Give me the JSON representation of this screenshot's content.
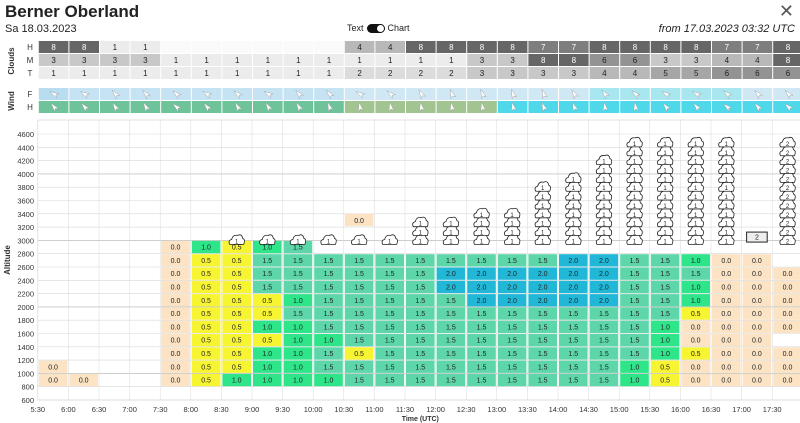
{
  "header": {
    "title": "Berner Oberland",
    "date": "Sa 18.03.2023",
    "toggle_text": "Text",
    "toggle_chart": "Chart",
    "from": "from 17.03.2023 03:32 UTC",
    "close": "✕"
  },
  "clouds": {
    "label": "Clouds",
    "rows": [
      {
        "label": "H",
        "values": [
          "8",
          "8",
          "1",
          "1",
          "",
          "",
          "",
          "",
          "",
          "",
          "4",
          "4",
          "8",
          "8",
          "8",
          "8",
          "7",
          "7",
          "8",
          "8",
          "8",
          "8",
          "7",
          "7",
          "8"
        ]
      },
      {
        "label": "M",
        "values": [
          "3",
          "3",
          "3",
          "3",
          "1",
          "1",
          "1",
          "1",
          "1",
          "1",
          "1",
          "1",
          "1",
          "1",
          "3",
          "3",
          "8",
          "8",
          "6",
          "6",
          "3",
          "3",
          "4",
          "4",
          "8"
        ]
      },
      {
        "label": "T",
        "values": [
          "1",
          "1",
          "1",
          "1",
          "1",
          "1",
          "1",
          "1",
          "1",
          "1",
          "2",
          "2",
          "2",
          "2",
          "3",
          "3",
          "3",
          "3",
          "4",
          "4",
          "5",
          "5",
          "6",
          "6",
          "6"
        ]
      }
    ]
  },
  "wind": {
    "label": "Wind",
    "rows": [
      {
        "label": "F"
      },
      {
        "label": "H"
      }
    ],
    "f_dirs": [
      -60,
      -60,
      -40,
      -40,
      -50,
      -60,
      -50,
      -60,
      -40,
      -40,
      -60,
      -50,
      -30,
      -20,
      -20,
      -20,
      -20,
      -30,
      -40,
      -50,
      -60,
      -60,
      -50,
      -40,
      -40
    ],
    "h_dirs": [
      -40,
      -40,
      -30,
      -30,
      -50,
      -40,
      -30,
      -30,
      -30,
      -20,
      -10,
      -10,
      -10,
      -10,
      -10,
      -10,
      -20,
      -20,
      -10,
      -10,
      -40,
      -40,
      -50,
      -40,
      -50
    ],
    "f_colors": [
      "#b8dcf0",
      "#c5e3f3",
      "#c5e3f3",
      "#c5e3f3",
      "#c5e3f3",
      "#c5e3f3",
      "#c5e3f3",
      "#c5e3f3",
      "#c5e3f3",
      "#c5e3f3",
      "#d0e8f4",
      "#d0e8f4",
      "#d0e8f4",
      "#d0e8f4",
      "#d0e8f4",
      "#d0e8f4",
      "#d0e8f4",
      "#d0e8f4",
      "#a8e6f0",
      "#a8e6f0",
      "#a8e6f0",
      "#a8e6f0",
      "#a8e6f0",
      "#d0e8f4",
      "#d0e8f4"
    ],
    "h_colors": [
      "#6fc39a",
      "#6fc39a",
      "#6fc39a",
      "#6fc39a",
      "#6fc39a",
      "#6fc39a",
      "#6fc39a",
      "#6fc39a",
      "#6fc39a",
      "#6fc39a",
      "#a2c490",
      "#a2c490",
      "#a2c490",
      "#a2c490",
      "#a2c490",
      "#4fd8ea",
      "#4fd8ea",
      "#4fd8ea",
      "#4fd8ea",
      "#4fd8ea",
      "#4fd8ea",
      "#4fd8ea",
      "#4fd8ea",
      "#4fd8ea",
      "#4fd8ea"
    ]
  },
  "chart_data": {
    "type": "heatmap",
    "ylabel": "Altitude",
    "xlabel": "Time (UTC)",
    "ylim": [
      600,
      4700
    ],
    "x": [
      "5:30",
      "6:00",
      "6:30",
      "7:00",
      "7:30",
      "8:00",
      "8:30",
      "9:00",
      "9:30",
      "10:00",
      "10:30",
      "11:00",
      "11:30",
      "12:00",
      "12:30",
      "13:00",
      "13:30",
      "14:00",
      "14:30",
      "15:00",
      "15:30",
      "16:00",
      "16:30",
      "17:00",
      "17:30"
    ],
    "yticks": [
      600,
      800,
      1000,
      1200,
      1400,
      1600,
      1800,
      2000,
      2200,
      2400,
      2600,
      2800,
      3000,
      3200,
      3400,
      3600,
      3800,
      4000,
      4200,
      4400,
      4600
    ],
    "levels": [
      900,
      1100,
      1300,
      1500,
      1700,
      1900,
      2100,
      2300,
      2500,
      2700,
      2900
    ],
    "cells": [
      [
        "0.0",
        "0.0",
        null,
        null,
        null,
        null,
        null,
        null,
        null,
        null,
        null
      ],
      [
        "0.0",
        null,
        null,
        null,
        null,
        null,
        null,
        null,
        null,
        null,
        null
      ],
      [
        null,
        null,
        null,
        null,
        null,
        null,
        null,
        null,
        null,
        null,
        null
      ],
      [
        null,
        null,
        null,
        null,
        null,
        null,
        null,
        null,
        null,
        null,
        null
      ],
      [
        "0.0",
        "0.0",
        "0.0",
        "0.0",
        "0.0",
        "0.0",
        "0.0",
        "0.0",
        "0.0",
        "0.0",
        "0.0"
      ],
      [
        "0.5",
        "0.5",
        "0.5",
        "0.5",
        "0.5",
        "0.5",
        "0.5",
        "0.5",
        "0.5",
        "0.5",
        "1.0"
      ],
      [
        "1.0",
        "0.5",
        "0.5",
        "0.5",
        "0.5",
        "0.5",
        "0.5",
        "0.5",
        "0.5",
        "0.5",
        "0.5"
      ],
      [
        "1.0",
        "1.0",
        "1.0",
        "0.5",
        "1.0",
        "0.5",
        "0.5",
        "1.5",
        "1.5",
        "1.5",
        "1.0"
      ],
      [
        "1.0",
        "1.0",
        "1.0",
        "1.0",
        "1.0",
        "1.5",
        "1.0",
        "1.5",
        "1.5",
        "1.5",
        "1.5"
      ],
      [
        "1.0",
        "1.5",
        "1.5",
        "1.0",
        "1.5",
        "1.5",
        "1.5",
        "1.5",
        "1.5",
        "1.5",
        null
      ],
      [
        "1.5",
        "1.5",
        "0.5",
        "1.5",
        "1.5",
        "1.5",
        "1.5",
        "1.5",
        "1.5",
        "1.5",
        null
      ],
      [
        "1.5",
        "1.5",
        "1.5",
        "1.5",
        "1.5",
        "1.5",
        "1.5",
        "1.5",
        "1.5",
        "1.5",
        null
      ],
      [
        "1.5",
        "1.5",
        "1.5",
        "1.5",
        "1.5",
        "1.5",
        "1.5",
        "1.5",
        "1.5",
        "1.5",
        null
      ],
      [
        "1.5",
        "1.5",
        "1.5",
        "1.5",
        "1.5",
        "1.5",
        "1.5",
        "2.0",
        "2.0",
        "1.5",
        null
      ],
      [
        "1.5",
        "1.5",
        "1.5",
        "1.5",
        "1.5",
        "1.5",
        "2.0",
        "2.0",
        "2.0",
        "1.5",
        null
      ],
      [
        "1.5",
        "1.5",
        "1.5",
        "1.5",
        "1.5",
        "1.5",
        "2.0",
        "2.0",
        "2.0",
        "1.5",
        null
      ],
      [
        "1.5",
        "1.5",
        "1.5",
        "1.5",
        "1.5",
        "1.5",
        "2.0",
        "2.0",
        "2.0",
        "1.5",
        null
      ],
      [
        "1.5",
        "1.5",
        "1.5",
        "1.5",
        "1.5",
        "1.5",
        "2.0",
        "2.0",
        "2.0",
        "2.0",
        null
      ],
      [
        "1.5",
        "1.5",
        "1.5",
        "1.5",
        "1.5",
        "1.5",
        "2.0",
        "2.0",
        "2.0",
        "2.0",
        null
      ],
      [
        "1.0",
        "1.0",
        "1.5",
        "1.5",
        "1.5",
        "1.5",
        "1.5",
        "1.5",
        "1.5",
        "1.5",
        null
      ],
      [
        "0.5",
        "0.5",
        "1.0",
        "1.0",
        "1.0",
        "1.5",
        "1.5",
        "1.5",
        "1.5",
        "1.5",
        null
      ],
      [
        "0.0",
        "0.0",
        "0.5",
        "0.0",
        "0.0",
        "0.5",
        "1.0",
        "1.0",
        "1.5",
        "1.0",
        null
      ],
      [
        "0.0",
        "0.0",
        "0.0",
        "0.0",
        "0.0",
        "0.0",
        "0.0",
        "0.0",
        "0.0",
        "0.0",
        null
      ],
      [
        "0.0",
        "0.0",
        "0.0",
        "0.0",
        "0.0",
        "0.0",
        "0.0",
        "0.0",
        "0.0",
        "0.0",
        null
      ],
      [
        "0.0",
        "0.0",
        "0.0",
        null,
        "0.0",
        "0.0",
        "0.0",
        "0.0",
        "0.0",
        null,
        null
      ]
    ],
    "cloud_labels": [
      "",
      "",
      "",
      "",
      "",
      "",
      "1",
      "1",
      "1",
      "1",
      "1",
      "1",
      "1",
      "1",
      "1",
      "1",
      "1",
      "1",
      "1",
      "1",
      "1",
      "1",
      "1",
      "2",
      "2"
    ],
    "cloud_tops": [
      0,
      0,
      0,
      0,
      0,
      0,
      3100,
      3100,
      3100,
      3100,
      3100,
      3100,
      3300,
      3300,
      3400,
      3500,
      3900,
      4000,
      4300,
      4500,
      4500,
      4500,
      4500,
      3000,
      4500
    ],
    "extra_labels": [
      {
        "col": 10,
        "alt": 3300,
        "text": "0.0"
      },
      {
        "col": 23,
        "alt": 3050,
        "text": "2"
      }
    ]
  },
  "colors": {
    "c0": "#fbe3c4",
    "c05": "#f7f431",
    "c10": "#2ee58a",
    "c15": "#5dd6aa",
    "c20": "#21b8d8",
    "grid": "#d8d8d8"
  }
}
